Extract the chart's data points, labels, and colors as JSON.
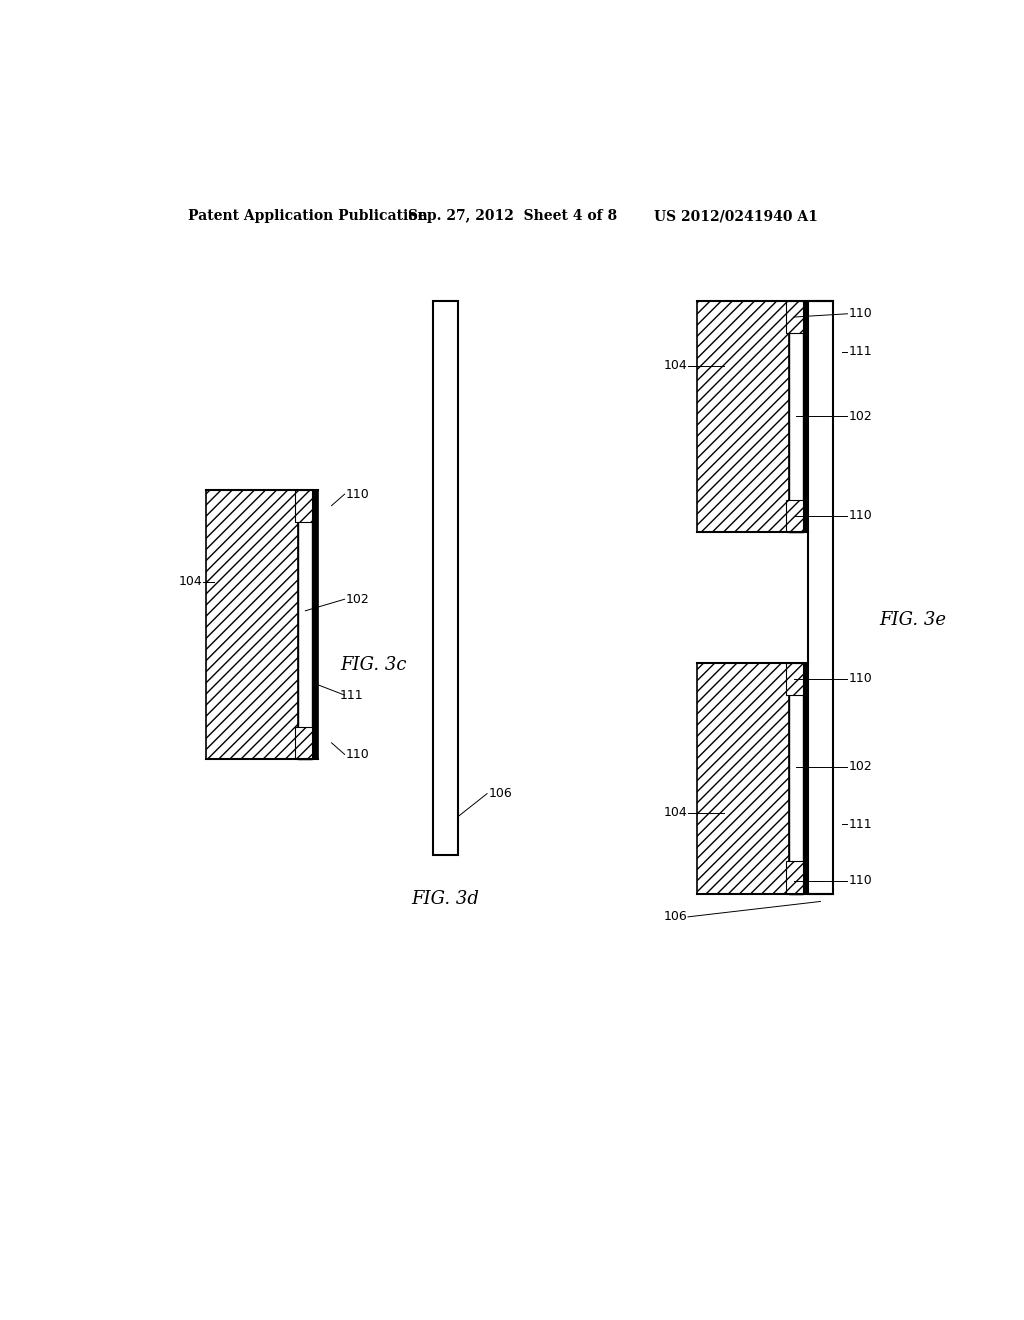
{
  "header_left": "Patent Application Publication",
  "header_center": "Sep. 27, 2012  Sheet 4 of 8",
  "header_right": "US 2012/0241940 A1",
  "fig3c_label": "FIG. 3c",
  "fig3d_label": "FIG. 3d",
  "fig3e_label": "FIG. 3e",
  "bg_color": "#ffffff",
  "line_color": "#000000"
}
